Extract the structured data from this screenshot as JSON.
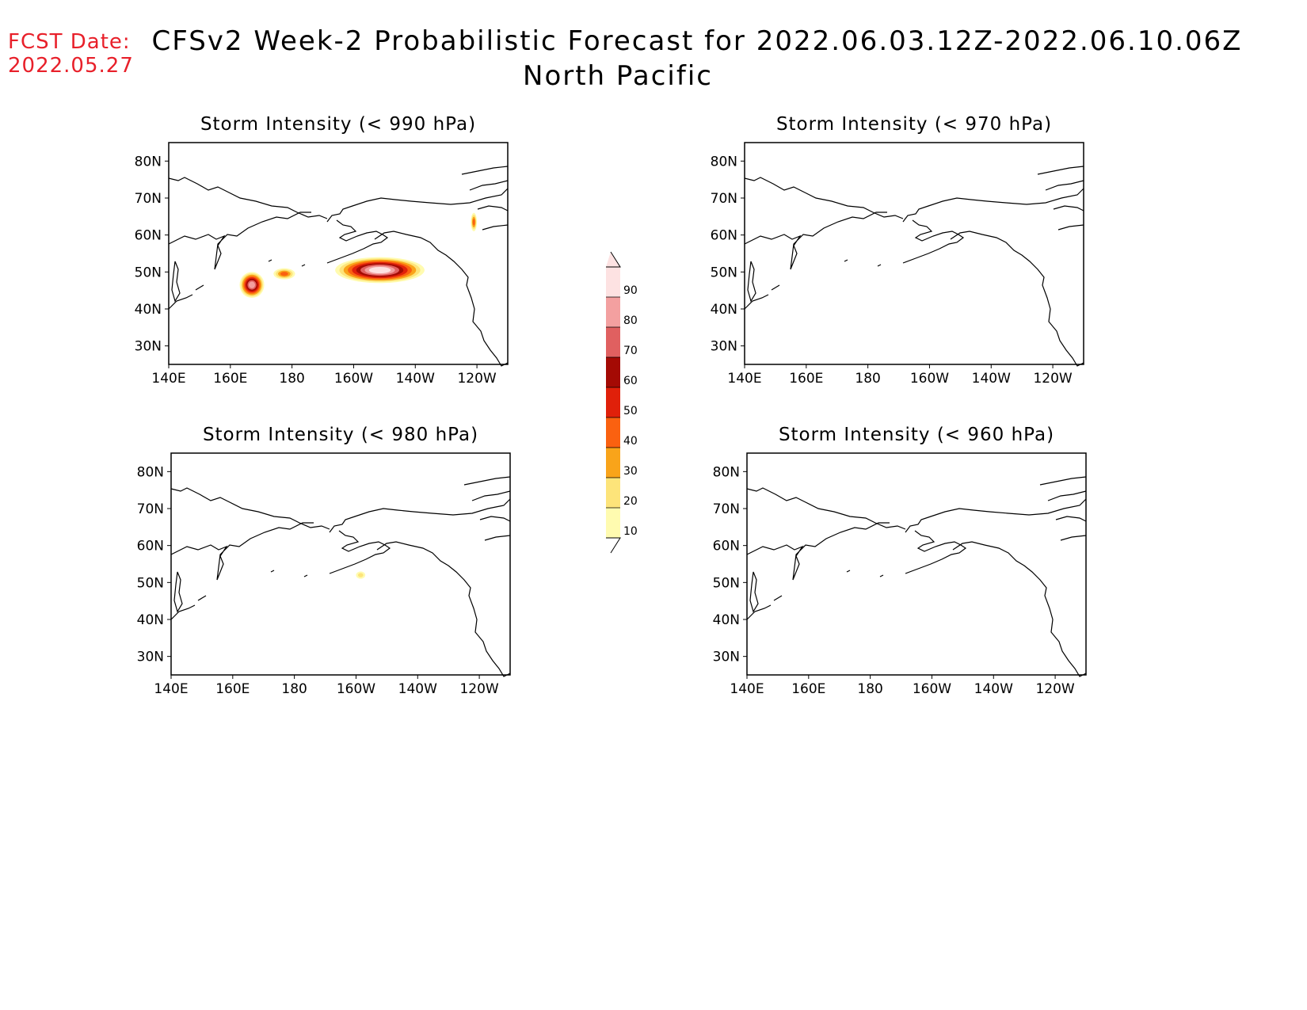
{
  "fcst_date": {
    "label": "FCST Date:",
    "value": "2022.05.27"
  },
  "title": "CFSv2 Week-2 Probabilistic Forecast for 2022.06.03.12Z-2022.06.10.06Z",
  "region": "North Pacific",
  "lon_ticks": [
    "140E",
    "160E",
    "180",
    "160W",
    "140W",
    "120W"
  ],
  "lat_ticks": [
    "80N",
    "70N",
    "60N",
    "50N",
    "40N",
    "30N"
  ],
  "colorbar": {
    "labels": [
      "10",
      "20",
      "30",
      "40",
      "50",
      "60",
      "70",
      "80",
      "90"
    ],
    "colors": [
      "#fffbb0",
      "#fde47a",
      "#f9a41a",
      "#fa6110",
      "#e0200a",
      "#a40a04",
      "#e06060",
      "#f3a0a0",
      "#fde2e2"
    ]
  },
  "panels": [
    {
      "title": "Storm Intensity (< 990 hPa)",
      "probability_areas": [
        {
          "lon_range": [
            163,
            171
          ],
          "lat_range": [
            43,
            50
          ],
          "max_prob": 80
        },
        {
          "lon_range": [
            174,
            181
          ],
          "lat_range": [
            48,
            51
          ],
          "max_prob": 40
        },
        {
          "lon_range": [
            194,
            223
          ],
          "lat_range": [
            47,
            54
          ],
          "max_prob": 90
        },
        {
          "lon_range": [
            238,
            240
          ],
          "lat_range": [
            61,
            66
          ],
          "max_prob": 40
        }
      ]
    },
    {
      "title": "Storm Intensity (< 970 hPa)",
      "probability_areas": []
    },
    {
      "title": "Storm Intensity (< 980 hPa)",
      "probability_areas": [
        {
          "lon_range": [
            200,
            203
          ],
          "lat_range": [
            51,
            53
          ],
          "max_prob": 20
        }
      ]
    },
    {
      "title": "Storm Intensity (< 960 hPa)",
      "probability_areas": []
    }
  ]
}
